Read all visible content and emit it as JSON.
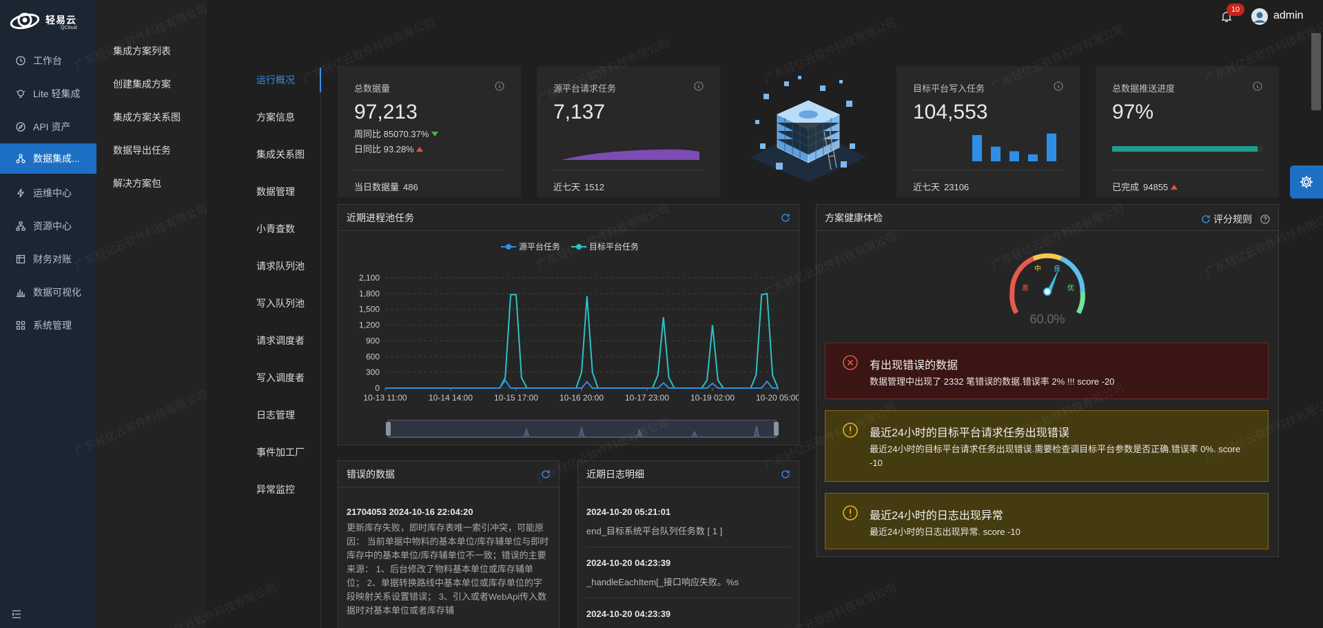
{
  "brand": {
    "name_cn": "轻易云",
    "name_en": "QCloud"
  },
  "nav": {
    "items": [
      {
        "label": "工作台",
        "icon": "clock-icon"
      },
      {
        "label": "Lite 轻集成",
        "icon": "bulb-icon"
      },
      {
        "label": "API 资产",
        "icon": "compass-icon"
      },
      {
        "label": "数据集成...",
        "icon": "share-nodes-icon",
        "active": true
      },
      {
        "label": "运维中心",
        "icon": "bolt-icon"
      },
      {
        "label": "资源中心",
        "icon": "tree-icon"
      },
      {
        "label": "财务对账",
        "icon": "ledger-icon"
      },
      {
        "label": "数据可视化",
        "icon": "bar-chart-icon"
      },
      {
        "label": "系统管理",
        "icon": "grid-icon"
      }
    ]
  },
  "submenu": {
    "items": [
      "集成方案列表",
      "创建集成方案",
      "集成方案关系图",
      "数据导出任务",
      "解决方案包"
    ]
  },
  "tabs": {
    "items": [
      "运行概况",
      "方案信息",
      "集成关系图",
      "数据管理",
      "小青查数",
      "请求队列池",
      "写入队列池",
      "请求调度者",
      "写入调度者",
      "日志管理",
      "事件加工厂",
      "异常监控"
    ],
    "active": 0
  },
  "header": {
    "notification_count": "10",
    "username": "admin"
  },
  "cards": {
    "total": {
      "title": "总数据量",
      "value": "97,213",
      "wow_label": "周同比",
      "wow_value": "85070.37%",
      "dod_label": "日同比",
      "dod_value": "93.28%",
      "foot_label": "当日数据量",
      "foot_value": "486"
    },
    "source": {
      "title": "源平台请求任务",
      "value": "7,137",
      "foot_label": "近七天",
      "foot_value": "1512"
    },
    "target": {
      "title": "目标平台写入任务",
      "value": "104,553",
      "foot_label": "近七天",
      "foot_value": "23106",
      "bars": [
        0.68,
        0.38,
        0.26,
        0.18,
        0.72
      ]
    },
    "progress": {
      "title": "总数据推送进度",
      "value": "97%",
      "progress": 0.97,
      "foot_label": "已完成",
      "foot_value": "94855"
    }
  },
  "chart_panel": {
    "title": "近期进程池任务",
    "legend": [
      "源平台任务",
      "目标平台任务"
    ],
    "colors": {
      "source": "#2f8fe6",
      "target": "#2cc2c9"
    }
  },
  "chart_data": {
    "type": "line",
    "yticks": [
      "2,100",
      "1,800",
      "1,500",
      "1,200",
      "900",
      "600",
      "300",
      "0"
    ],
    "xticks": [
      "10-13 11:00",
      "10-14 14:00",
      "10-15 17:00",
      "10-16 20:00",
      "10-17 23:00",
      "10-19 02:00",
      "10-20 05:00"
    ],
    "ylim": [
      0,
      2100
    ],
    "x": [
      0,
      21,
      22,
      23,
      24,
      25,
      26,
      35,
      36,
      37,
      38,
      39,
      40,
      49,
      50,
      51,
      52,
      53,
      58,
      59,
      60,
      61,
      62,
      67,
      68,
      69,
      70,
      71,
      72
    ],
    "series": [
      {
        "name": "源平台任务",
        "values": [
          0,
          0,
          150,
          0,
          0,
          0,
          0,
          0,
          0,
          120,
          0,
          0,
          0,
          0,
          0,
          100,
          0,
          0,
          0,
          0,
          90,
          0,
          0,
          0,
          0,
          0,
          130,
          0,
          0
        ]
      },
      {
        "name": "目标平台任务",
        "values": [
          0,
          0,
          200,
          1780,
          1780,
          200,
          0,
          0,
          300,
          1750,
          300,
          0,
          0,
          0,
          250,
          1350,
          200,
          0,
          0,
          150,
          1200,
          150,
          0,
          0,
          250,
          1780,
          1800,
          250,
          0
        ]
      }
    ]
  },
  "health": {
    "title": "方案健康体检",
    "rule_label": "评分规则",
    "gauge": {
      "value": "60.0%",
      "level": 0.6,
      "labels": [
        "差",
        "中",
        "良",
        "优"
      ]
    },
    "alerts": [
      {
        "kind": "error",
        "title": "有出现错误的数据",
        "desc": "数据管理中出现了 2332 笔错误的数据.错误率 2% !!! score -20",
        "bg": "#3b1513",
        "border": "#6b2a26",
        "icon_color": "#e0534a"
      },
      {
        "kind": "warning",
        "title": "最近24小时的目标平台请求任务出现错误",
        "desc": "最近24小时的目标平台请求任务出现错误.需要检查调目标平台参数是否正确.错误率 0%. score -10",
        "bg": "#453b10",
        "border": "#7a6a1c",
        "icon_color": "#e6b422"
      },
      {
        "kind": "warning",
        "title": "最近24小时的日志出现异常",
        "desc": "最近24小时的日志出现异常. score -10",
        "bg": "#453b10",
        "border": "#7a6a1c",
        "icon_color": "#e6b422"
      }
    ]
  },
  "error_panel": {
    "title": "错误的数据",
    "entry_title": "21704053 2024-10-16 22:04:20",
    "entry_body": "更新库存失败，即时库存表唯一索引冲突，可能原因： 当前单据中物料的基本单位/库存辅单位与即时库存中的基本单位/库存辅单位不一致；错误的主要来源： 1、后台修改了物料基本单位或库存辅单位； 2、单据转换路线中基本单位或库存单位的字段映射关系设置错误； 3、引入或者WebApi传入数据时对基本单位或者库存辅"
  },
  "log_panel": {
    "title": "近期日志明细",
    "entries": [
      {
        "time": "2024-10-20 05:21:01",
        "msg": "end_目标系统平台队列任务数 [ 1 ]"
      },
      {
        "time": "2024-10-20 04:23:39",
        "msg": "_handleEachItem[_接口响应失败。%s"
      },
      {
        "time": "2024-10-20 04:23:39",
        "msg": ""
      }
    ]
  },
  "watermark": "广东轻亿云软件科技有限公司"
}
